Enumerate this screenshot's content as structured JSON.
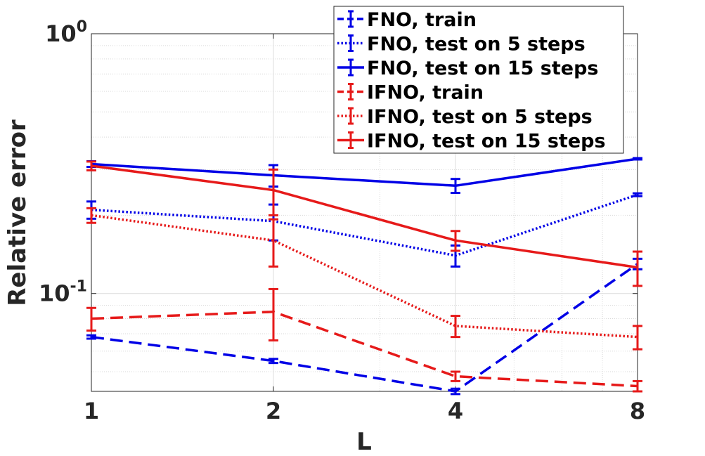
{
  "chart_data": {
    "type": "line",
    "xlabel": "L",
    "ylabel": "Relative error",
    "x_scale": "log2",
    "y_scale": "log10",
    "xlim": [
      1,
      8
    ],
    "ylim": [
      0.042,
      1.0
    ],
    "x_ticks": [
      {
        "value": 1,
        "label": "1"
      },
      {
        "value": 2,
        "label": "2"
      },
      {
        "value": 4,
        "label": "4"
      },
      {
        "value": 8,
        "label": "8"
      }
    ],
    "y_ticks": [
      {
        "value": 1.0,
        "base": "10",
        "exp": "0"
      },
      {
        "value": 0.1,
        "base": "10",
        "exp": "-1"
      }
    ],
    "grid": true,
    "legend_position": "top-right",
    "x": [
      1,
      2,
      4,
      8
    ],
    "series": [
      {
        "name": "FNO, train",
        "color": "#0000e6",
        "style": "dashed",
        "values": [
          0.068,
          0.055,
          0.042,
          0.13
        ],
        "err": [
          0.001,
          0.001,
          0.001,
          0.006
        ]
      },
      {
        "name": "FNO, test on 5 steps",
        "color": "#0000e6",
        "style": "dotted",
        "values": [
          0.21,
          0.19,
          0.14,
          0.24
        ],
        "err": [
          0.016,
          0.03,
          0.013,
          0.003
        ]
      },
      {
        "name": "FNO, test on 15 steps",
        "color": "#0000e6",
        "style": "solid",
        "values": [
          0.315,
          0.285,
          0.26,
          0.33
        ],
        "err": [
          0.008,
          0.027,
          0.016,
          0.002
        ]
      },
      {
        "name": "IFNO, train",
        "color": "#e61a1a",
        "style": "dashed",
        "values": [
          0.08,
          0.085,
          0.048,
          0.044
        ],
        "err": [
          0.008,
          0.019,
          0.002,
          0.002
        ]
      },
      {
        "name": "IFNO, test on 5 steps",
        "color": "#e61a1a",
        "style": "dotted",
        "values": [
          0.2,
          0.16,
          0.075,
          0.068
        ],
        "err": [
          0.013,
          0.033,
          0.007,
          0.007
        ]
      },
      {
        "name": "IFNO, test on 15 steps",
        "color": "#e61a1a",
        "style": "solid",
        "values": [
          0.31,
          0.25,
          0.16,
          0.126
        ],
        "err": [
          0.012,
          0.05,
          0.014,
          0.019
        ]
      }
    ]
  }
}
